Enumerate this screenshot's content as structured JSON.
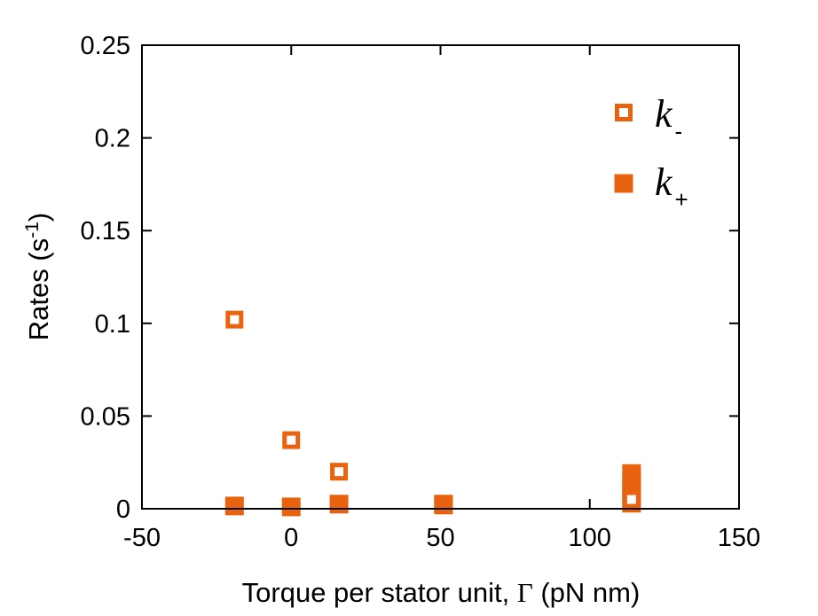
{
  "chart_data": {
    "type": "scatter",
    "xlabel": {
      "before": "Torque per stator unit, ",
      "symbol": "Γ",
      "after": " (pN nm)"
    },
    "ylabel": {
      "main": "Rates (s",
      "sup": "-1",
      "close": ")"
    },
    "xlim": [
      -50,
      150
    ],
    "ylim": [
      0,
      0.25
    ],
    "xticks": [
      -50,
      0,
      50,
      100,
      150
    ],
    "xtick_labels": [
      "-50",
      "0",
      "50",
      "100",
      "150"
    ],
    "yticks": [
      0,
      0.05,
      0.1,
      0.15,
      0.2,
      0.25
    ],
    "ytick_labels": [
      "0",
      "0.05",
      "0.1",
      "0.15",
      "0.2",
      "0.25"
    ],
    "grid": false,
    "legend_position": "top-right",
    "series": [
      {
        "name": "k-",
        "legend_symbol": "k",
        "legend_subscript": "-",
        "marker": "open-square",
        "color": "#e8620f",
        "points": [
          {
            "x": -19,
            "y": 0.102
          },
          {
            "x": 0,
            "y": 0.037
          },
          {
            "x": 16,
            "y": 0.02
          },
          {
            "x": 114,
            "y": 0.005
          }
        ]
      },
      {
        "name": "k+",
        "legend_symbol": "k",
        "legend_subscript": "+",
        "marker": "filled-square",
        "color": "#e8620f",
        "points": [
          {
            "x": -19,
            "y": 0.0015
          },
          {
            "x": 0,
            "y": 0.001
          },
          {
            "x": 16,
            "y": 0.0025
          },
          {
            "x": 51,
            "y": 0.002
          },
          {
            "x": 51,
            "y": 0.0025
          },
          {
            "x": 114,
            "y": 0.003
          },
          {
            "x": 114,
            "y": 0.006
          },
          {
            "x": 114,
            "y": 0.009
          },
          {
            "x": 114,
            "y": 0.012
          },
          {
            "x": 114,
            "y": 0.015
          },
          {
            "x": 114,
            "y": 0.019
          }
        ]
      }
    ]
  }
}
